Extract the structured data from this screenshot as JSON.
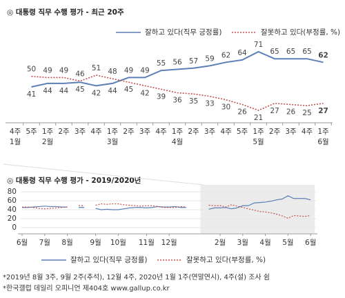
{
  "chart_data": [
    {
      "type": "line",
      "title": "◎ 대통령 직무 수행 평가 - 최근 20주",
      "categories": [
        "4주",
        "5주",
        "1주",
        "2주",
        "3주",
        "4주",
        "1주",
        "2주",
        "3주",
        "4주",
        "1주",
        "2주",
        "3주",
        "4주",
        "5주",
        "1주",
        "2주",
        "3주",
        "4주",
        "1주"
      ],
      "category_months": [
        "1월",
        null,
        "2월",
        null,
        null,
        null,
        "3월",
        null,
        null,
        null,
        "4월",
        null,
        null,
        null,
        null,
        "5월",
        null,
        null,
        null,
        "6월"
      ],
      "series": [
        {
          "name": "잘하고 있다(직무 긍정률)",
          "color": "#5b7fb6",
          "line_style": "solid",
          "values": [
            null,
            41,
            44,
            44,
            45,
            42,
            44,
            49,
            49,
            55,
            56,
            57,
            59,
            62,
            64,
            71,
            65,
            65,
            65,
            62
          ]
        },
        {
          "name": "잘못하고 있다(부정률, %)",
          "color": "#c0504d",
          "line_style": "dotted",
          "values": [
            null,
            50,
            49,
            49,
            46,
            51,
            48,
            45,
            42,
            39,
            36,
            35,
            33,
            30,
            26,
            21,
            27,
            26,
            25,
            27
          ]
        }
      ]
    },
    {
      "type": "line",
      "title": "◎ 대통령 직무 수행 평가 - 2019/2020년",
      "categories": [
        "6월",
        null,
        null,
        null,
        "7월",
        null,
        null,
        null,
        "8월",
        null,
        null,
        null,
        null,
        "9월",
        null,
        null,
        null,
        "10월",
        null,
        null,
        null,
        null,
        "11월",
        null,
        null,
        null,
        "12월",
        null,
        null,
        null,
        null,
        null,
        null,
        null,
        null,
        "2월",
        null,
        null,
        null,
        "3월",
        null,
        null,
        null,
        "4월",
        null,
        null,
        null,
        "5월",
        null,
        null,
        null,
        "6월"
      ],
      "series": [
        {
          "name": "잘하고 있다(직무 긍정률)",
          "color": "#5b7fb6",
          "line_style": "solid",
          "values": [
            45,
            45,
            46,
            47,
            48,
            47,
            47,
            46,
            46,
            null,
            45,
            45,
            null,
            43,
            40,
            41,
            40,
            40,
            42,
            44,
            45,
            45,
            44,
            45,
            47,
            46,
            46,
            47,
            45,
            45,
            null,
            45,
            null,
            41,
            44,
            44,
            45,
            42,
            44,
            49,
            49,
            55,
            56,
            57,
            59,
            62,
            64,
            71,
            65,
            65,
            65,
            62
          ]
        },
        {
          "name": "잘못하고 있다(부정률, %)",
          "color": "#c0504d",
          "line_style": "dotted",
          "values": [
            46,
            46,
            45,
            43,
            42,
            43,
            44,
            45,
            46,
            null,
            49,
            49,
            null,
            50,
            53,
            52,
            53,
            53,
            51,
            50,
            49,
            48,
            49,
            49,
            47,
            45,
            45,
            45,
            47,
            46,
            null,
            47,
            null,
            50,
            49,
            49,
            46,
            51,
            48,
            45,
            42,
            39,
            36,
            35,
            33,
            30,
            26,
            21,
            27,
            26,
            25,
            27
          ]
        }
      ],
      "ylim": [
        0,
        80
      ],
      "yticks": [
        0,
        20,
        40,
        60,
        80
      ]
    },
    {
      "type": "notes",
      "notes": [
        "*2019년 8월 3주, 9월 2주(추석), 12월 4주, 2020년 1월 1주(연말연시), 4주(설) 조사 쉼",
        "*한국갤럽 데일리 오피니언 제404호 www.gallup.co.kr"
      ]
    }
  ]
}
